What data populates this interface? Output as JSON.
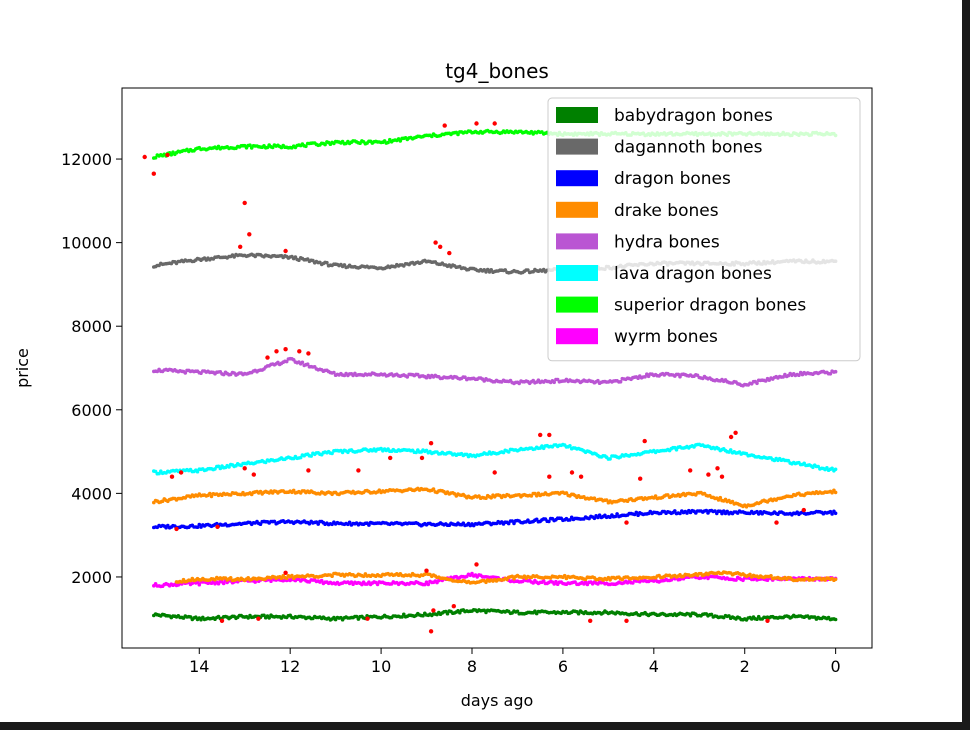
{
  "chart_data": {
    "type": "scatter",
    "title": "tg4_bones",
    "xlabel": "days ago",
    "ylabel": "price",
    "xlim": [
      15.7,
      -0.8
    ],
    "ylim": [
      300,
      13700
    ],
    "x_ticks": [
      14,
      12,
      10,
      8,
      6,
      4,
      2,
      0
    ],
    "x_tick_labels": [
      "14",
      "12",
      "10",
      "8",
      "6",
      "4",
      "2",
      "0"
    ],
    "y_ticks": [
      2000,
      4000,
      6000,
      8000,
      10000,
      12000
    ],
    "y_tick_labels": [
      "2000",
      "4000",
      "6000",
      "8000",
      "10000",
      "12000"
    ],
    "legend_position": "top-right",
    "outlier_color": "#ff0000",
    "series": [
      {
        "name": "babydragon bones",
        "color": "#008000",
        "x": [
          15,
          14,
          13,
          12,
          11,
          10,
          9,
          8,
          7,
          6,
          5,
          4,
          3,
          2,
          1,
          0
        ],
        "y": [
          1100,
          1000,
          1050,
          1050,
          1000,
          1050,
          1100,
          1200,
          1150,
          1150,
          1150,
          1100,
          1100,
          1000,
          1050,
          1000
        ],
        "outliers": [
          [
            13.5,
            950
          ],
          [
            12.7,
            1000
          ],
          [
            10.3,
            1000
          ],
          [
            8.9,
            700
          ],
          [
            8.85,
            1200
          ],
          [
            8.4,
            1300
          ],
          [
            5.4,
            950
          ],
          [
            4.6,
            950
          ],
          [
            1.5,
            950
          ]
        ]
      },
      {
        "name": "dagannoth bones",
        "color": "#696969",
        "x": [
          15,
          14,
          13,
          12,
          11,
          10,
          9,
          8,
          7,
          6,
          5,
          4,
          3,
          2,
          1,
          0
        ],
        "y": [
          9450,
          9600,
          9700,
          9650,
          9450,
          9400,
          9550,
          9350,
          9300,
          9350,
          9400,
          9500,
          9500,
          9500,
          9550,
          9550
        ],
        "outliers": [
          [
            13.0,
            10950
          ],
          [
            12.9,
            10200
          ],
          [
            13.1,
            9900
          ],
          [
            12.1,
            9800
          ],
          [
            8.8,
            10000
          ],
          [
            8.7,
            9900
          ],
          [
            8.5,
            9750
          ]
        ]
      },
      {
        "name": "dragon bones",
        "color": "#0000ff",
        "x": [
          15,
          14,
          13,
          12,
          11,
          10,
          9,
          8,
          7,
          6,
          5,
          4,
          3,
          2,
          1,
          0
        ],
        "y": [
          3200,
          3220,
          3280,
          3320,
          3280,
          3270,
          3260,
          3260,
          3320,
          3380,
          3460,
          3540,
          3560,
          3540,
          3520,
          3540
        ],
        "outliers": [
          [
            14.5,
            3150
          ],
          [
            13.6,
            3200
          ],
          [
            4.6,
            3300
          ],
          [
            1.3,
            3300
          ],
          [
            0.7,
            3600
          ]
        ]
      },
      {
        "name": "drake bones",
        "color": "#ff8c00",
        "x": [
          15,
          14,
          13,
          12,
          11,
          10,
          9,
          8,
          7,
          6,
          5,
          4,
          3,
          2,
          1,
          0
        ],
        "y": [
          3800,
          3950,
          4000,
          4050,
          4000,
          4050,
          4100,
          3900,
          3950,
          4000,
          3800,
          3900,
          4000,
          3700,
          3950,
          4050
        ],
        "outliers": [
          [
            14.6,
            4400
          ],
          [
            14.4,
            4500
          ],
          [
            13.0,
            4600
          ],
          [
            12.8,
            4450
          ],
          [
            11.6,
            4550
          ],
          [
            10.5,
            4550
          ],
          [
            9.8,
            4850
          ],
          [
            9.1,
            4850
          ],
          [
            7.5,
            4500
          ],
          [
            6.3,
            4400
          ],
          [
            5.8,
            4500
          ],
          [
            5.6,
            4400
          ],
          [
            4.3,
            4350
          ],
          [
            3.2,
            4550
          ],
          [
            2.8,
            4450
          ],
          [
            2.6,
            4600
          ],
          [
            2.5,
            4400
          ]
        ]
      },
      {
        "name": "hydra bones",
        "color": "#ba55d3",
        "x": [
          15,
          14,
          13,
          12,
          11,
          10,
          9,
          8,
          7,
          6,
          5,
          4,
          3,
          2,
          1,
          0
        ],
        "y": [
          6950,
          6900,
          6850,
          7200,
          6850,
          6850,
          6800,
          6750,
          6650,
          6700,
          6650,
          6850,
          6800,
          6600,
          6850,
          6900
        ],
        "outliers": [
          [
            12.3,
            7400
          ],
          [
            12.1,
            7450
          ],
          [
            11.8,
            7400
          ],
          [
            11.6,
            7350
          ],
          [
            12.5,
            7250
          ]
        ]
      },
      {
        "name": "lava dragon bones",
        "color": "#00ffff",
        "x": [
          15,
          14,
          13,
          12,
          11,
          10,
          9,
          8,
          7,
          6,
          5,
          4,
          3,
          2,
          1,
          0
        ],
        "y": [
          4500,
          4550,
          4700,
          4850,
          5000,
          5050,
          5000,
          4900,
          5050,
          5150,
          4850,
          5000,
          5150,
          4950,
          4750,
          4550
        ],
        "outliers": [
          [
            8.9,
            5200
          ],
          [
            6.5,
            5400
          ],
          [
            6.3,
            5400
          ],
          [
            4.2,
            5250
          ],
          [
            2.2,
            5450
          ],
          [
            2.3,
            5350
          ]
        ]
      },
      {
        "name": "superior dragon bones",
        "color": "#00ff00",
        "x": [
          15,
          14,
          13,
          12,
          11,
          10,
          9,
          8,
          7,
          6,
          5,
          4,
          3,
          2,
          1,
          0
        ],
        "y": [
          12050,
          12250,
          12300,
          12300,
          12400,
          12400,
          12550,
          12650,
          12650,
          12600,
          12600,
          12600,
          12600,
          12600,
          12600,
          12600
        ],
        "outliers": [
          [
            15.0,
            11650
          ],
          [
            14.7,
            12100
          ],
          [
            15.2,
            12050
          ],
          [
            8.6,
            12800
          ],
          [
            7.9,
            12850
          ],
          [
            7.5,
            12850
          ]
        ]
      },
      {
        "name": "wyrm bones",
        "color": "#ff00ff",
        "x": [
          15,
          14,
          13,
          12,
          11,
          10,
          9,
          8,
          7,
          6,
          5,
          4,
          3,
          2,
          1,
          0
        ],
        "y": [
          1800,
          1850,
          1900,
          1950,
          1850,
          1850,
          1850,
          2050,
          1900,
          1850,
          1850,
          1900,
          2000,
          1950,
          1950,
          1950
        ],
        "outliers": [
          [
            12.1,
            2100
          ],
          [
            9.0,
            2150
          ],
          [
            7.9,
            2300
          ]
        ]
      }
    ],
    "overlay_series": [
      {
        "name_ref": "drake bones",
        "color": "#ff8c00",
        "x": [
          14.5,
          14,
          13,
          12,
          11,
          10,
          9,
          8,
          7,
          6,
          5,
          4,
          3,
          2.5,
          2,
          1,
          0
        ],
        "y": [
          1900,
          1950,
          1950,
          2000,
          2050,
          2050,
          2050,
          1850,
          2000,
          2000,
          1950,
          2000,
          2050,
          2100,
          2050,
          1950,
          1950
        ]
      }
    ]
  }
}
